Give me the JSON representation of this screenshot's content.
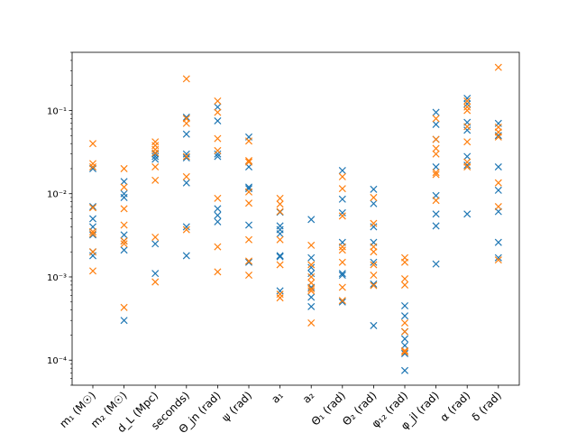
{
  "chart_data": {
    "type": "scatter",
    "title": "",
    "xlabel": "",
    "ylabel": "",
    "yscale": "log",
    "ylim": [
      5e-05,
      0.5
    ],
    "grid": false,
    "legend": "none",
    "marker": "x",
    "categories": [
      "m₁ (M☉)",
      "m₂ (M☉)",
      "d_L (Mpc)",
      "seconds)",
      "Θ_jn (rad)",
      "ψ (rad)",
      "a₁",
      "a₂",
      "Θ₁ (rad)",
      "Θ₂ (rad)",
      "φ₁₂ (rad)",
      "φ_jl (rad)",
      "α (rad)",
      "δ (rad)"
    ],
    "y_tick_labels": [
      {
        "value": 0.0001,
        "label": "10⁻⁴"
      },
      {
        "value": 0.001,
        "label": "10⁻³"
      },
      {
        "value": 0.01,
        "label": "10⁻²"
      },
      {
        "value": 0.1,
        "label": "10⁻¹"
      }
    ],
    "series": [
      {
        "color": "#1f77b4",
        "values": [
          [
            0.02,
            0.007,
            0.005,
            0.004,
            0.0032,
            0.002,
            0.0018
          ],
          [
            0.014,
            0.01,
            0.009,
            0.0032,
            0.0027,
            0.0021,
            0.0003
          ],
          [
            0.03,
            0.028,
            0.026,
            0.0025,
            0.0011
          ],
          [
            0.083,
            0.052,
            0.03,
            0.027,
            0.0135,
            0.004,
            0.0018
          ],
          [
            0.11,
            0.075,
            0.03,
            0.028,
            0.0066,
            0.0055,
            0.0046
          ],
          [
            0.048,
            0.021,
            0.012,
            0.0115,
            0.0042,
            0.0015
          ],
          [
            0.006,
            0.0041,
            0.0037,
            0.0033,
            0.0018,
            0.00175,
            0.00068
          ],
          [
            0.0049,
            0.0017,
            0.0013,
            0.0011,
            0.00075,
            0.00057,
            0.00044
          ],
          [
            0.019,
            0.0086,
            0.0059,
            0.0026,
            0.0011,
            0.00105,
            0.0005
          ],
          [
            0.0113,
            0.0076,
            0.004,
            0.0026,
            0.0015,
            0.00082,
            0.00026
          ],
          [
            0.00045,
            0.00034,
            0.00022,
            0.00018,
            0.00015,
            0.00012,
            7.5e-05
          ],
          [
            0.095,
            0.068,
            0.045,
            0.021,
            0.0095,
            0.0057,
            0.0041,
            0.00143
          ],
          [
            0.14,
            0.12,
            0.072,
            0.058,
            0.028,
            0.022,
            0.0057
          ],
          [
            0.07,
            0.05,
            0.021,
            0.011,
            0.0061,
            0.0026,
            0.0017
          ]
        ]
      },
      {
        "color": "#ff7f0e",
        "values": [
          [
            0.04,
            0.023,
            0.021,
            0.0068,
            0.0035,
            0.0033,
            0.002,
            0.00118
          ],
          [
            0.02,
            0.012,
            0.0066,
            0.0042,
            0.0027,
            0.0025,
            0.00043
          ],
          [
            0.042,
            0.038,
            0.034,
            0.031,
            0.021,
            0.0145,
            0.003,
            0.00087
          ],
          [
            0.24,
            0.08,
            0.07,
            0.028,
            0.016,
            0.0037
          ],
          [
            0.13,
            0.095,
            0.046,
            0.033,
            0.0088,
            0.0023,
            0.00115
          ],
          [
            0.043,
            0.025,
            0.024,
            0.0105,
            0.0077,
            0.0028,
            0.00155,
            0.00105
          ],
          [
            0.0088,
            0.0075,
            0.0061,
            0.0028,
            0.0014,
            0.00062,
            0.00056
          ],
          [
            0.0024,
            0.0014,
            0.001,
            0.00085,
            0.00072,
            0.00068,
            0.00028
          ],
          [
            0.016,
            0.0115,
            0.0054,
            0.0023,
            0.0021,
            0.0015,
            0.00075,
            0.00052
          ],
          [
            0.009,
            0.0044,
            0.0023,
            0.002,
            0.0014,
            0.00105,
            0.00079
          ],
          [
            0.0017,
            0.0015,
            0.00095,
            0.0008,
            0.00028,
            0.00022,
            0.00013,
            0.000125
          ],
          [
            0.08,
            0.045,
            0.035,
            0.03,
            0.018,
            0.017,
            0.0083
          ],
          [
            0.13,
            0.11,
            0.1,
            0.064,
            0.042,
            0.024,
            0.021
          ],
          [
            0.33,
            0.063,
            0.055,
            0.048,
            0.0135,
            0.007,
            0.0016
          ]
        ]
      }
    ]
  }
}
